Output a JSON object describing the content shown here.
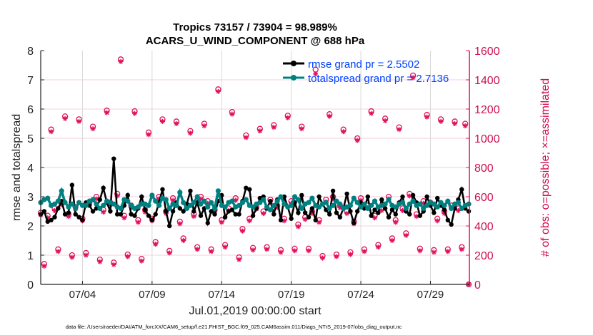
{
  "chart_data": {
    "type": "line",
    "title": [
      "Tropics 73157 / 73904 = 98.989%",
      "ACARS_U_WIND_COMPONENT @ 688 hPa"
    ],
    "xlabel": "Jul.01,2019 00:00:00 start",
    "ylabel": "rmse and totalspread",
    "ylabel_right": "# of obs: o=possible; ×=assimilated",
    "footer": "data file: /Users/raeder/DAI/ATM_forcXX/CAM6_setup/f.e21.FHIST_BGC.f09_025.CAM6assim.011/Diags_NTrS_2019-07/obs_diag_output.nc",
    "x_start": "2019-07-01 00:00",
    "time_step_hours": 6,
    "xlim_days": [
      0,
      30.8
    ],
    "xticks": [
      {
        "day": 3,
        "label": "07/04"
      },
      {
        "day": 8,
        "label": "07/09"
      },
      {
        "day": 13,
        "label": "07/14"
      },
      {
        "day": 18,
        "label": "07/19"
      },
      {
        "day": 23,
        "label": "07/24"
      },
      {
        "day": 28,
        "label": "07/29"
      }
    ],
    "ylim": [
      0,
      8
    ],
    "yticks": [
      0,
      1,
      2,
      3,
      4,
      5,
      6,
      7,
      8
    ],
    "ylim_right": [
      0,
      1600
    ],
    "yticks_right": [
      0,
      200,
      400,
      600,
      800,
      1000,
      1200,
      1400,
      1600
    ],
    "grid": true,
    "legend_placement": "top-right",
    "colors": {
      "rmse": "#000000",
      "totalspread": "#008080",
      "obs": "#e0105a",
      "legend_text": "#0040ff",
      "grid_v": "#d8d8d8",
      "grid_h": "#f3cfe0"
    },
    "series": [
      {
        "name": "rmse grand pr = 2.5502",
        "values": [
          2.4,
          2.5,
          2.15,
          2.2,
          2.3,
          2.6,
          2.85,
          2.4,
          2.45,
          3.4,
          2.4,
          2.3,
          2.2,
          2.8,
          2.7,
          2.5,
          2.6,
          2.9,
          3.3,
          2.8,
          2.5,
          4.3,
          2.4,
          2.4,
          2.7,
          3.05,
          2.4,
          2.35,
          2.6,
          3.0,
          2.55,
          2.35,
          2.2,
          2.4,
          2.8,
          3.25,
          2.5,
          2.0,
          2.5,
          2.8,
          2.6,
          2.5,
          2.75,
          3.2,
          2.5,
          2.8,
          2.35,
          2.6,
          2.1,
          2.5,
          2.4,
          2.85,
          3.05,
          2.3,
          2.5,
          2.55,
          2.4,
          2.4,
          2.85,
          3.3,
          3.25,
          2.35,
          2.6,
          2.95,
          3.0,
          2.6,
          2.85,
          2.4,
          2.9,
          2.2,
          3.0,
          2.65,
          2.25,
          2.8,
          2.45,
          3.05,
          2.45,
          2.3,
          2.6,
          2.2,
          3.0,
          2.75,
          2.55,
          2.4,
          3.2,
          2.45,
          2.3,
          2.6,
          3.1,
          2.5,
          2.1,
          2.5,
          2.8,
          2.6,
          3.0,
          2.35,
          2.55,
          2.45,
          2.9,
          2.6,
          2.3,
          2.55,
          2.4,
          2.8,
          3.0,
          2.5,
          2.4,
          3.05,
          2.8,
          2.35,
          2.5,
          3.0,
          2.7,
          2.45,
          2.95,
          2.7,
          2.55,
          2.2,
          2.05,
          2.6,
          2.9,
          3.25,
          2.6,
          2.5
        ]
      },
      {
        "name": "totalspread grand pr = 2.7136",
        "values": [
          2.8,
          2.9,
          2.95,
          2.7,
          2.75,
          2.85,
          3.2,
          2.8,
          2.65,
          2.75,
          2.6,
          2.8,
          2.7,
          2.7,
          2.85,
          2.9,
          2.75,
          2.6,
          2.7,
          2.85,
          2.8,
          2.75,
          2.65,
          2.6,
          2.9,
          2.85,
          2.7,
          2.6,
          2.65,
          2.75,
          2.75,
          2.7,
          3.05,
          2.85,
          2.7,
          2.95,
          2.9,
          2.6,
          2.75,
          2.7,
          3.15,
          2.8,
          2.6,
          2.7,
          2.8,
          3.0,
          2.75,
          2.85,
          2.65,
          2.8,
          2.6,
          3.2,
          2.7,
          2.65,
          2.8,
          2.85,
          2.65,
          2.7,
          2.8,
          2.9,
          2.7,
          2.65,
          2.75,
          2.8,
          2.9,
          2.65,
          2.55,
          2.7,
          2.85,
          3.0,
          2.75,
          2.65,
          2.7,
          3.0,
          2.9,
          2.6,
          2.75,
          2.8,
          2.95,
          2.7,
          2.65,
          2.75,
          2.8,
          2.6,
          2.7,
          2.85,
          2.75,
          2.6,
          2.65,
          2.7,
          2.95,
          2.8,
          2.65,
          2.75,
          2.6,
          2.7,
          2.85,
          2.65,
          2.7,
          2.75,
          2.9,
          2.7,
          2.65,
          2.75,
          2.8,
          2.6,
          2.75,
          2.85,
          2.7,
          2.75,
          2.6,
          2.7,
          2.8,
          2.75,
          2.65,
          2.8,
          2.7,
          2.85,
          2.6,
          2.75,
          2.8,
          2.6,
          2.7,
          2.75
        ]
      }
    ],
    "obs_possible": [
      490,
      140,
      470,
      1060,
      520,
      240,
      560,
      1150,
      480,
      200,
      530,
      1130,
      450,
      215,
      560,
      1080,
      600,
      170,
      510,
      1190,
      560,
      150,
      620,
      1540,
      470,
      205,
      540,
      1185,
      440,
      175,
      510,
      1040,
      450,
      290,
      600,
      1130,
      500,
      230,
      590,
      1115,
      430,
      315,
      540,
      1050,
      480,
      255,
      600,
      1100,
      570,
      240,
      510,
      1335,
      440,
      270,
      520,
      1180,
      590,
      185,
      380,
      1020,
      450,
      250,
      530,
      1065,
      500,
      255,
      580,
      1090,
      540,
      235,
      450,
      1155,
      570,
      245,
      410,
      1080,
      460,
      245,
      500,
      1470,
      440,
      195,
      580,
      1165,
      600,
      205,
      540,
      1060,
      500,
      220,
      430,
      1000,
      590,
      240,
      540,
      1185,
      470,
      270,
      520,
      1135,
      600,
      315,
      440,
      1075,
      520,
      350,
      620,
      1430,
      480,
      245,
      570,
      1160,
      560,
      235,
      450,
      1130,
      500,
      240,
      540,
      1115,
      520,
      255,
      1100,
      0
    ],
    "obs_assimilated": [
      475,
      125,
      455,
      1045,
      505,
      225,
      545,
      1135,
      465,
      185,
      515,
      1115,
      435,
      200,
      545,
      1065,
      585,
      155,
      495,
      1175,
      545,
      135,
      605,
      1525,
      455,
      190,
      525,
      1170,
      425,
      160,
      495,
      1025,
      435,
      275,
      585,
      1115,
      485,
      215,
      575,
      1100,
      415,
      300,
      525,
      1035,
      465,
      240,
      585,
      1085,
      555,
      225,
      495,
      1320,
      425,
      255,
      505,
      1165,
      575,
      170,
      365,
      1005,
      435,
      235,
      515,
      1050,
      485,
      240,
      565,
      1075,
      525,
      220,
      435,
      1140,
      555,
      230,
      395,
      1065,
      445,
      230,
      485,
      1440,
      425,
      180,
      565,
      1150,
      585,
      190,
      525,
      1045,
      485,
      205,
      415,
      985,
      575,
      225,
      525,
      1170,
      455,
      255,
      505,
      1120,
      585,
      300,
      425,
      1060,
      505,
      335,
      605,
      1415,
      465,
      230,
      555,
      1145,
      545,
      220,
      435,
      1115,
      485,
      225,
      525,
      1100,
      505,
      240,
      1085,
      0
    ]
  }
}
